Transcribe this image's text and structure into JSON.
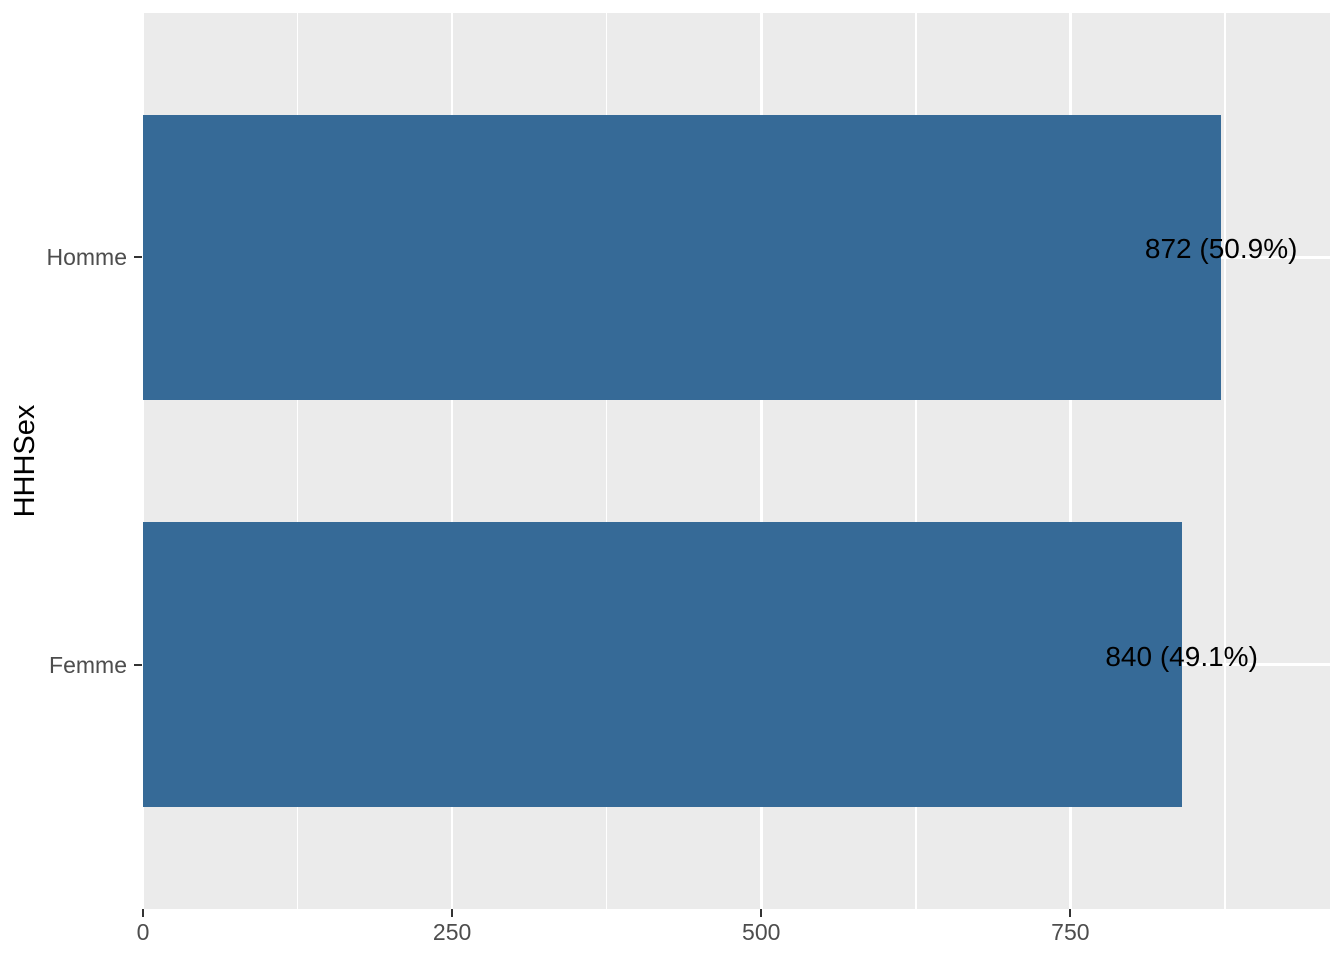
{
  "chart_data": {
    "type": "bar",
    "orientation": "horizontal",
    "title": "",
    "xlabel": "",
    "ylabel": "HHHSex",
    "categories": [
      "Homme",
      "Femme"
    ],
    "values": [
      872,
      840
    ],
    "bar_labels": [
      "872 (50.9%)",
      "840 (49.1%)"
    ],
    "percentages": [
      50.9,
      49.1
    ],
    "x_major_ticks": [
      0,
      250,
      500,
      750
    ],
    "x_minor_ticks": [
      125,
      375,
      625,
      875
    ],
    "xlim": [
      0,
      960
    ],
    "grid": true,
    "legend_position": "none",
    "colors": {
      "bar_fill": "#366A97",
      "panel_background": "#EBEBEB",
      "gridline": "#FFFFFF",
      "axis_text": "#4D4D4D",
      "axis_title": "#000000",
      "tick_mark": "#333333",
      "bar_label_text": "#000000"
    }
  }
}
